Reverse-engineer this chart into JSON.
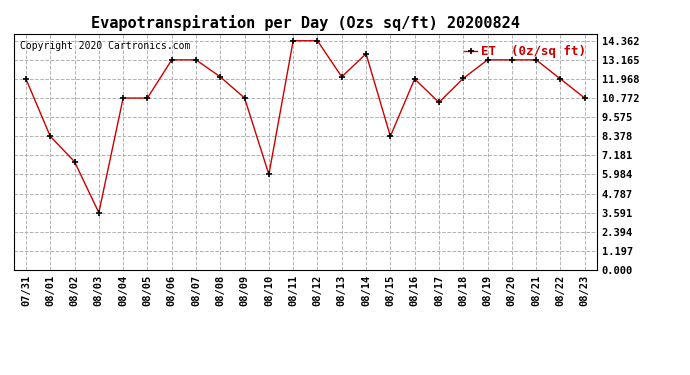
{
  "title": "Evapotranspiration per Day (Ozs sq/ft) 20200824",
  "copyright_text": "Copyright 2020 Cartronics.com",
  "legend_label": "ET  (0z/sq ft)",
  "x_labels": [
    "07/31",
    "08/01",
    "08/02",
    "08/03",
    "08/04",
    "08/05",
    "08/06",
    "08/07",
    "08/08",
    "08/09",
    "08/10",
    "08/11",
    "08/12",
    "08/13",
    "08/14",
    "08/15",
    "08/16",
    "08/17",
    "08/18",
    "08/19",
    "08/20",
    "08/21",
    "08/22",
    "08/23"
  ],
  "y_values": [
    11.968,
    8.378,
    6.784,
    3.591,
    10.772,
    10.772,
    13.165,
    13.165,
    12.1,
    10.772,
    5.984,
    14.362,
    14.362,
    12.1,
    13.55,
    8.378,
    11.968,
    10.5,
    12.0,
    13.165,
    13.165,
    13.165,
    11.968,
    10.772
  ],
  "y_ticks": [
    0.0,
    1.197,
    2.394,
    3.591,
    4.787,
    5.984,
    7.181,
    8.378,
    9.575,
    10.772,
    11.968,
    13.165,
    14.362
  ],
  "ylim": [
    0.0,
    14.8
  ],
  "line_color": "#cc0000",
  "marker_color": "#000000",
  "grid_color": "#aaaaaa",
  "background_color": "#ffffff",
  "title_fontsize": 11,
  "copyright_fontsize": 7,
  "legend_fontsize": 9,
  "tick_fontsize": 7.5
}
